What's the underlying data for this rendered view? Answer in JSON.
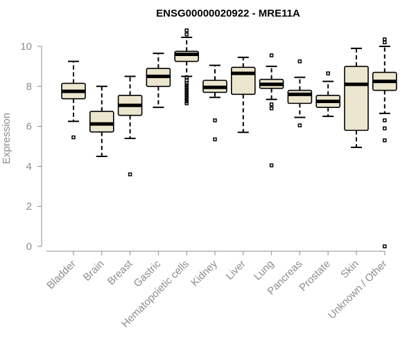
{
  "chart_data": {
    "type": "box",
    "title": "ENSG00000020922 - MRE11A",
    "xlabel": "",
    "ylabel": "Expression",
    "ylim": [
      0,
      10
    ],
    "yticks": [
      0,
      2,
      4,
      6,
      8,
      10
    ],
    "grid": false,
    "legend": "none",
    "box_fill": "#ede6cf",
    "categories": [
      "Bladder",
      "Brain",
      "Breast",
      "Gastric",
      "Hematopoietic cells",
      "Kidney",
      "Liver",
      "Lung",
      "Pancreas",
      "Prostate",
      "Skin",
      "Unknown / Other"
    ],
    "boxes": [
      {
        "category": "Bladder",
        "whisker_low": 6.25,
        "q1": 7.38,
        "median": 7.75,
        "q3": 8.15,
        "whisker_high": 9.25,
        "outliers": [
          5.45
        ]
      },
      {
        "category": "Brain",
        "whisker_low": 4.5,
        "q1": 5.72,
        "median": 6.12,
        "q3": 6.75,
        "whisker_high": 8.0,
        "outliers": []
      },
      {
        "category": "Breast",
        "whisker_low": 5.4,
        "q1": 6.55,
        "median": 7.05,
        "q3": 7.55,
        "whisker_high": 8.5,
        "outliers": [
          3.6
        ]
      },
      {
        "category": "Gastric",
        "whisker_low": 6.95,
        "q1": 8.0,
        "median": 8.5,
        "q3": 8.9,
        "whisker_high": 9.65,
        "outliers": []
      },
      {
        "category": "Hematopoietic cells",
        "whisker_low": 8.5,
        "q1": 9.25,
        "median": 9.6,
        "q3": 9.75,
        "whisker_high": 10.45,
        "outliers": [
          7.15,
          7.25,
          7.35,
          7.45,
          7.55,
          7.65,
          7.75,
          7.85,
          7.95,
          8.05,
          8.15,
          8.3,
          8.45,
          10.6,
          10.8
        ]
      },
      {
        "category": "Kidney",
        "whisker_low": 7.45,
        "q1": 7.7,
        "median": 7.95,
        "q3": 8.3,
        "whisker_high": 9.05,
        "outliers": [
          6.3,
          5.35
        ]
      },
      {
        "category": "Liver",
        "whisker_low": 5.7,
        "q1": 7.6,
        "median": 8.65,
        "q3": 8.95,
        "whisker_high": 9.45,
        "outliers": []
      },
      {
        "category": "Lung",
        "whisker_low": 7.35,
        "q1": 7.9,
        "median": 8.1,
        "q3": 8.35,
        "whisker_high": 9.0,
        "outliers": [
          9.55,
          7.1,
          6.9,
          4.05
        ]
      },
      {
        "category": "Pancreas",
        "whisker_low": 6.45,
        "q1": 7.15,
        "median": 7.6,
        "q3": 7.8,
        "whisker_high": 8.45,
        "outliers": [
          9.25,
          6.05
        ]
      },
      {
        "category": "Prostate",
        "whisker_low": 6.5,
        "q1": 6.95,
        "median": 7.25,
        "q3": 7.55,
        "whisker_high": 8.25,
        "outliers": [
          8.65
        ]
      },
      {
        "category": "Skin",
        "whisker_low": 4.95,
        "q1": 5.8,
        "median": 8.1,
        "q3": 9.0,
        "whisker_high": 9.9,
        "outliers": []
      },
      {
        "category": "Unknown / Other",
        "whisker_low": 6.65,
        "q1": 7.8,
        "median": 8.25,
        "q3": 8.7,
        "whisker_high": 10.0,
        "outliers": [
          10.35,
          10.2,
          6.3,
          5.9,
          5.3,
          0.0
        ]
      }
    ]
  }
}
